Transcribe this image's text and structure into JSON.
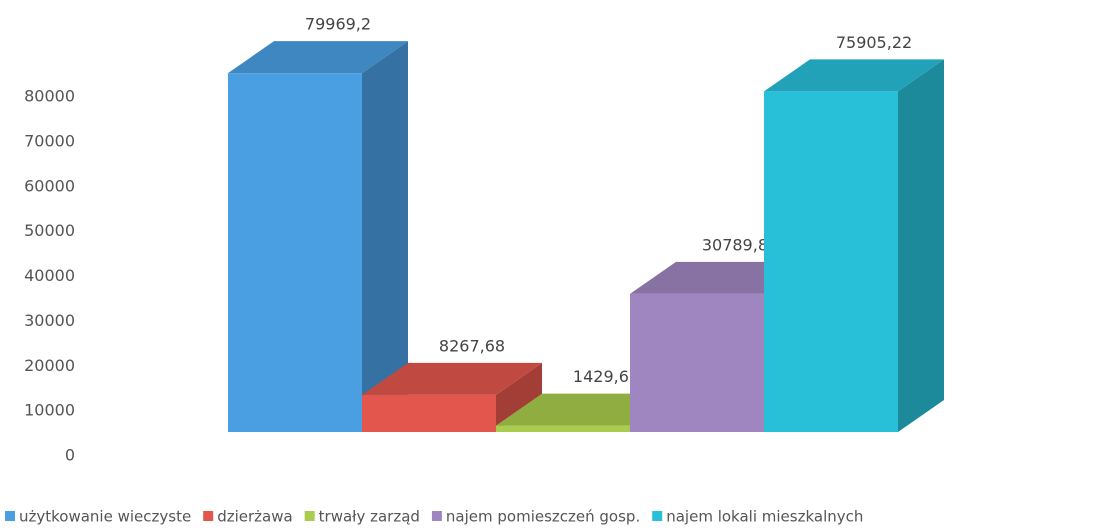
{
  "chart_data": {
    "type": "bar3d",
    "series": [
      {
        "name": "użytkowanie wieczyste",
        "color": "#4a9fe2",
        "values": [
          79969.2
        ],
        "value_labels": [
          "79969,2"
        ]
      },
      {
        "name": "dzierżawa",
        "color": "#e2564d",
        "values": [
          8267.68
        ],
        "value_labels": [
          "8267,68"
        ]
      },
      {
        "name": "trwały zarząd",
        "color": "#a9cc4e",
        "values": [
          1429.69
        ],
        "value_labels": [
          "1429,69"
        ]
      },
      {
        "name": "najem pomieszczeń gosp.",
        "color": "#a086c0",
        "values": [
          30789.87
        ],
        "value_labels": [
          "30789,87"
        ]
      },
      {
        "name": "najem lokali mieszkalnych",
        "color": "#28bfd9",
        "values": [
          75905.22
        ],
        "value_labels": [
          "75905,22"
        ]
      }
    ],
    "ylim": [
      0,
      80000
    ],
    "yticks": [
      0,
      10000,
      20000,
      30000,
      40000,
      50000,
      60000,
      70000,
      80000
    ],
    "grid": false
  }
}
